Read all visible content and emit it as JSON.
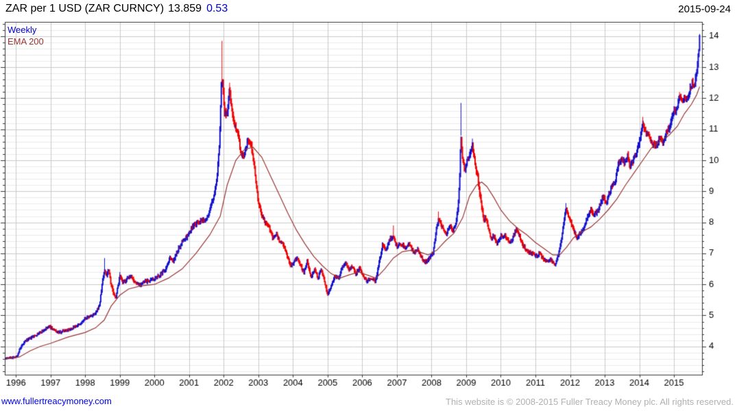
{
  "header": {
    "instrument": "ZAR per 1 USD (ZAR CURNCY)",
    "last_price": "13.859",
    "change": "0.53",
    "date": "2015-09-24"
  },
  "legend": {
    "weekly": "Weekly",
    "ema": "EMA 200"
  },
  "footer": {
    "website": "www.fullertreacymoney.com",
    "copyright": "This website is © 2008-2015 Fuller Treacy Money plc. All rights reserved."
  },
  "colors": {
    "up": "#1111cc",
    "down": "#ee0000",
    "ema": "#993333",
    "change_text": "#0000cc",
    "grid_major": "#c8c8c8",
    "grid_minor": "#eaeaea",
    "axis": "#333333",
    "copyright_text": "#b0b0b0"
  },
  "chart_data": {
    "type": "ohlc-bar",
    "title": "ZAR per 1 USD (ZAR CURNCY)",
    "subtitle_legend": [
      "Weekly",
      "EMA 200"
    ],
    "last_price": 13.859,
    "change": 0.53,
    "as_of": "2015-09-24",
    "x_range": [
      1995.68,
      2015.81
    ],
    "y_range": [
      3.09,
      14.46
    ],
    "x_ticks": [
      1996,
      1997,
      1998,
      1999,
      2000,
      2001,
      2002,
      2003,
      2004,
      2005,
      2006,
      2007,
      2008,
      2009,
      2010,
      2011,
      2012,
      2013,
      2014,
      2015
    ],
    "y_ticks": [
      4,
      5,
      6,
      7,
      8,
      9,
      10,
      11,
      12,
      13,
      14
    ],
    "y_minor_step": 0.2,
    "grid": true,
    "legend_position": "top-left",
    "bars_start": 1995.7,
    "bars_end": 2015.74,
    "weekly_close_anchors": [
      [
        1995.7,
        3.63
      ],
      [
        1996.02,
        3.66
      ],
      [
        1996.1,
        3.88
      ],
      [
        1996.18,
        4.02
      ],
      [
        1996.28,
        4.18
      ],
      [
        1996.4,
        4.25
      ],
      [
        1996.55,
        4.35
      ],
      [
        1996.7,
        4.45
      ],
      [
        1996.85,
        4.55
      ],
      [
        1996.97,
        4.65
      ],
      [
        1997.1,
        4.52
      ],
      [
        1997.25,
        4.45
      ],
      [
        1997.4,
        4.52
      ],
      [
        1997.55,
        4.55
      ],
      [
        1997.7,
        4.65
      ],
      [
        1997.85,
        4.7
      ],
      [
        1998.0,
        4.9
      ],
      [
        1998.15,
        4.97
      ],
      [
        1998.3,
        5.05
      ],
      [
        1998.42,
        5.35
      ],
      [
        1998.5,
        6.1
      ],
      [
        1998.56,
        6.45
      ],
      [
        1998.62,
        6.3
      ],
      [
        1998.68,
        6.5
      ],
      [
        1998.75,
        6.0
      ],
      [
        1998.82,
        5.7
      ],
      [
        1998.88,
        5.55
      ],
      [
        1998.95,
        5.95
      ],
      [
        1999.0,
        6.25
      ],
      [
        1999.08,
        6.05
      ],
      [
        1999.2,
        6.15
      ],
      [
        1999.32,
        6.3
      ],
      [
        1999.45,
        6.05
      ],
      [
        1999.6,
        6.0
      ],
      [
        1999.75,
        6.1
      ],
      [
        1999.9,
        6.12
      ],
      [
        2000.05,
        6.2
      ],
      [
        2000.2,
        6.35
      ],
      [
        2000.35,
        6.55
      ],
      [
        2000.45,
        6.9
      ],
      [
        2000.55,
        6.75
      ],
      [
        2000.7,
        7.15
      ],
      [
        2000.85,
        7.45
      ],
      [
        2000.95,
        7.55
      ],
      [
        2001.1,
        7.85
      ],
      [
        2001.25,
        8.0
      ],
      [
        2001.4,
        8.05
      ],
      [
        2001.55,
        8.2
      ],
      [
        2001.68,
        8.7
      ],
      [
        2001.8,
        9.3
      ],
      [
        2001.88,
        10.6
      ],
      [
        2001.93,
        12.4
      ],
      [
        2001.97,
        12.6
      ],
      [
        2002.02,
        11.6
      ],
      [
        2002.1,
        11.45
      ],
      [
        2002.17,
        12.3
      ],
      [
        2002.25,
        11.5
      ],
      [
        2002.33,
        11.1
      ],
      [
        2002.42,
        10.9
      ],
      [
        2002.5,
        10.2
      ],
      [
        2002.6,
        10.15
      ],
      [
        2002.7,
        10.65
      ],
      [
        2002.8,
        10.45
      ],
      [
        2002.9,
        9.7
      ],
      [
        2003.0,
        8.65
      ],
      [
        2003.1,
        8.25
      ],
      [
        2003.2,
        8.0
      ],
      [
        2003.3,
        7.9
      ],
      [
        2003.42,
        7.5
      ],
      [
        2003.52,
        7.6
      ],
      [
        2003.62,
        7.35
      ],
      [
        2003.72,
        7.3
      ],
      [
        2003.82,
        6.95
      ],
      [
        2003.92,
        6.6
      ],
      [
        2004.02,
        6.7
      ],
      [
        2004.12,
        6.9
      ],
      [
        2004.22,
        6.6
      ],
      [
        2004.32,
        6.4
      ],
      [
        2004.42,
        6.75
      ],
      [
        2004.52,
        6.25
      ],
      [
        2004.62,
        6.5
      ],
      [
        2004.72,
        6.2
      ],
      [
        2004.82,
        6.5
      ],
      [
        2004.92,
        6.05
      ],
      [
        2005.0,
        5.7
      ],
      [
        2005.1,
        5.9
      ],
      [
        2005.2,
        6.25
      ],
      [
        2005.32,
        6.2
      ],
      [
        2005.42,
        6.55
      ],
      [
        2005.52,
        6.7
      ],
      [
        2005.62,
        6.45
      ],
      [
        2005.72,
        6.6
      ],
      [
        2005.82,
        6.35
      ],
      [
        2005.92,
        6.55
      ],
      [
        2006.02,
        6.3
      ],
      [
        2006.12,
        6.12
      ],
      [
        2006.25,
        6.2
      ],
      [
        2006.38,
        6.1
      ],
      [
        2006.48,
        6.65
      ],
      [
        2006.58,
        7.25
      ],
      [
        2006.68,
        7.1
      ],
      [
        2006.78,
        7.45
      ],
      [
        2006.9,
        7.55
      ],
      [
        2007.0,
        7.2
      ],
      [
        2007.12,
        7.3
      ],
      [
        2007.25,
        7.15
      ],
      [
        2007.37,
        7.3
      ],
      [
        2007.48,
        7.0
      ],
      [
        2007.6,
        7.15
      ],
      [
        2007.72,
        6.85
      ],
      [
        2007.84,
        6.7
      ],
      [
        2007.95,
        6.9
      ],
      [
        2008.05,
        7.05
      ],
      [
        2008.14,
        7.75
      ],
      [
        2008.2,
        8.1
      ],
      [
        2008.3,
        7.85
      ],
      [
        2008.42,
        7.6
      ],
      [
        2008.52,
        7.85
      ],
      [
        2008.62,
        7.75
      ],
      [
        2008.7,
        7.95
      ],
      [
        2008.76,
        8.4
      ],
      [
        2008.81,
        9.3
      ],
      [
        2008.85,
        10.8
      ],
      [
        2008.9,
        10.0
      ],
      [
        2008.96,
        9.7
      ],
      [
        2009.02,
        9.95
      ],
      [
        2009.1,
        10.15
      ],
      [
        2009.18,
        10.45
      ],
      [
        2009.26,
        9.9
      ],
      [
        2009.34,
        9.4
      ],
      [
        2009.42,
        8.7
      ],
      [
        2009.5,
        8.15
      ],
      [
        2009.6,
        8.05
      ],
      [
        2009.7,
        7.5
      ],
      [
        2009.8,
        7.55
      ],
      [
        2009.9,
        7.35
      ],
      [
        2010.0,
        7.55
      ],
      [
        2010.12,
        7.6
      ],
      [
        2010.24,
        7.35
      ],
      [
        2010.35,
        7.5
      ],
      [
        2010.45,
        7.8
      ],
      [
        2010.55,
        7.55
      ],
      [
        2010.65,
        7.25
      ],
      [
        2010.78,
        7.05
      ],
      [
        2010.9,
        7.0
      ],
      [
        2011.0,
        6.9
      ],
      [
        2011.12,
        7.0
      ],
      [
        2011.24,
        6.8
      ],
      [
        2011.36,
        6.75
      ],
      [
        2011.46,
        6.8
      ],
      [
        2011.56,
        6.6
      ],
      [
        2011.64,
        6.85
      ],
      [
        2011.72,
        7.25
      ],
      [
        2011.8,
        7.8
      ],
      [
        2011.88,
        8.45
      ],
      [
        2011.94,
        8.3
      ],
      [
        2012.0,
        8.05
      ],
      [
        2012.1,
        7.75
      ],
      [
        2012.2,
        7.5
      ],
      [
        2012.32,
        7.7
      ],
      [
        2012.42,
        7.9
      ],
      [
        2012.52,
        8.25
      ],
      [
        2012.6,
        8.4
      ],
      [
        2012.7,
        8.25
      ],
      [
        2012.8,
        8.35
      ],
      [
        2012.9,
        8.7
      ],
      [
        2012.97,
        8.85
      ],
      [
        2013.04,
        8.55
      ],
      [
        2013.12,
        8.9
      ],
      [
        2013.2,
        9.15
      ],
      [
        2013.3,
        9.3
      ],
      [
        2013.4,
        9.9
      ],
      [
        2013.5,
        10.05
      ],
      [
        2013.58,
        9.9
      ],
      [
        2013.66,
        10.15
      ],
      [
        2013.74,
        9.8
      ],
      [
        2013.84,
        10.05
      ],
      [
        2013.94,
        10.35
      ],
      [
        2014.04,
        10.8
      ],
      [
        2014.1,
        11.2
      ],
      [
        2014.18,
        10.95
      ],
      [
        2014.28,
        10.75
      ],
      [
        2014.38,
        10.55
      ],
      [
        2014.48,
        10.45
      ],
      [
        2014.58,
        10.7
      ],
      [
        2014.68,
        10.6
      ],
      [
        2014.78,
        10.9
      ],
      [
        2014.88,
        11.05
      ],
      [
        2014.98,
        11.55
      ],
      [
        2015.08,
        11.6
      ],
      [
        2015.16,
        12.0
      ],
      [
        2015.24,
        11.9
      ],
      [
        2015.32,
        12.05
      ],
      [
        2015.4,
        11.95
      ],
      [
        2015.48,
        12.35
      ],
      [
        2015.54,
        12.5
      ],
      [
        2015.6,
        12.4
      ],
      [
        2015.65,
        12.8
      ],
      [
        2015.69,
        13.15
      ],
      [
        2015.72,
        13.6
      ],
      [
        2015.74,
        13.86
      ]
    ],
    "ema200_anchors": [
      [
        1995.7,
        3.6
      ],
      [
        1996.1,
        3.66
      ],
      [
        1996.4,
        3.85
      ],
      [
        1996.7,
        4.0
      ],
      [
        1997.0,
        4.1
      ],
      [
        1997.5,
        4.3
      ],
      [
        1998.0,
        4.45
      ],
      [
        1998.3,
        4.6
      ],
      [
        1998.55,
        4.85
      ],
      [
        1998.75,
        5.3
      ],
      [
        1999.0,
        5.65
      ],
      [
        1999.25,
        5.85
      ],
      [
        1999.6,
        5.95
      ],
      [
        2000.0,
        6.0
      ],
      [
        2000.4,
        6.2
      ],
      [
        2000.8,
        6.5
      ],
      [
        2001.2,
        7.0
      ],
      [
        2001.6,
        7.6
      ],
      [
        2001.9,
        8.2
      ],
      [
        2002.1,
        9.2
      ],
      [
        2002.35,
        10.0
      ],
      [
        2002.6,
        10.35
      ],
      [
        2002.85,
        10.42
      ],
      [
        2003.1,
        10.1
      ],
      [
        2003.35,
        9.5
      ],
      [
        2003.6,
        8.9
      ],
      [
        2003.85,
        8.3
      ],
      [
        2004.1,
        7.75
      ],
      [
        2004.35,
        7.3
      ],
      [
        2004.6,
        6.9
      ],
      [
        2004.85,
        6.6
      ],
      [
        2005.1,
        6.35
      ],
      [
        2005.35,
        6.2
      ],
      [
        2005.6,
        6.3
      ],
      [
        2005.9,
        6.4
      ],
      [
        2006.15,
        6.3
      ],
      [
        2006.4,
        6.2
      ],
      [
        2006.65,
        6.5
      ],
      [
        2006.9,
        6.85
      ],
      [
        2007.15,
        7.05
      ],
      [
        2007.4,
        7.1
      ],
      [
        2007.65,
        7.05
      ],
      [
        2007.9,
        6.95
      ],
      [
        2008.15,
        7.1
      ],
      [
        2008.4,
        7.4
      ],
      [
        2008.65,
        7.65
      ],
      [
        2008.9,
        8.15
      ],
      [
        2009.1,
        8.85
      ],
      [
        2009.3,
        9.2
      ],
      [
        2009.45,
        9.3
      ],
      [
        2009.6,
        9.15
      ],
      [
        2009.8,
        8.8
      ],
      [
        2010.0,
        8.4
      ],
      [
        2010.25,
        8.05
      ],
      [
        2010.5,
        7.8
      ],
      [
        2010.75,
        7.6
      ],
      [
        2011.0,
        7.35
      ],
      [
        2011.25,
        7.15
      ],
      [
        2011.5,
        6.95
      ],
      [
        2011.7,
        6.95
      ],
      [
        2011.9,
        7.2
      ],
      [
        2012.1,
        7.5
      ],
      [
        2012.35,
        7.7
      ],
      [
        2012.6,
        7.85
      ],
      [
        2012.85,
        8.1
      ],
      [
        2013.1,
        8.4
      ],
      [
        2013.35,
        8.75
      ],
      [
        2013.6,
        9.2
      ],
      [
        2013.85,
        9.6
      ],
      [
        2014.1,
        10.0
      ],
      [
        2014.35,
        10.4
      ],
      [
        2014.6,
        10.6
      ],
      [
        2014.85,
        10.8
      ],
      [
        2015.1,
        11.1
      ],
      [
        2015.3,
        11.5
      ],
      [
        2015.5,
        11.8
      ],
      [
        2015.65,
        12.1
      ],
      [
        2015.74,
        12.37
      ]
    ],
    "spike_wicks": [
      [
        1998.56,
        6.85,
        "up"
      ],
      [
        1999.0,
        6.4,
        "up"
      ],
      [
        2001.95,
        13.85,
        "down"
      ],
      [
        2002.17,
        12.5,
        "down"
      ],
      [
        2006.9,
        7.9,
        "down"
      ],
      [
        2008.2,
        8.35,
        "down"
      ],
      [
        2008.85,
        11.85,
        "up"
      ],
      [
        2009.18,
        10.7,
        "up"
      ],
      [
        2011.88,
        8.62,
        "up"
      ],
      [
        2014.1,
        11.4,
        "down"
      ],
      [
        2015.16,
        12.2,
        "down"
      ],
      [
        2015.74,
        14.07,
        "up"
      ]
    ]
  }
}
